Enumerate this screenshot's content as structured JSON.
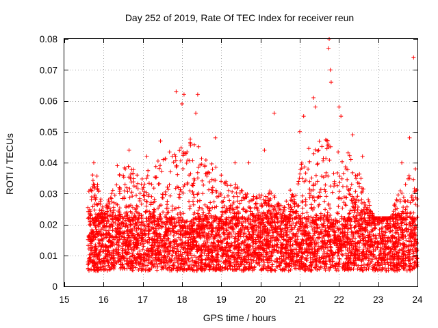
{
  "chart_data": {
    "type": "scatter",
    "title": "Day 252 of 2019, Rate Of TEC Index for receiver reun",
    "xlabel": "GPS time / hours",
    "ylabel": "ROTI / TECUs",
    "xlim": [
      15,
      24
    ],
    "ylim": [
      0,
      0.08
    ],
    "xticks": [
      15,
      16,
      17,
      18,
      19,
      20,
      21,
      22,
      23,
      24
    ],
    "yticks": [
      0,
      0.01,
      0.02,
      0.03,
      0.04,
      0.05,
      0.06,
      0.07,
      0.08
    ],
    "xtick_labels": [
      "15",
      "16",
      "17",
      "18",
      "19",
      "20",
      "21",
      "22",
      "23",
      "24"
    ],
    "ytick_labels": [
      "0",
      "0.01",
      "0.02",
      "0.03",
      "0.04",
      "0.05",
      "0.06",
      "0.07",
      "0.08"
    ],
    "grid": true,
    "marker": "+",
    "color": "#ff0000",
    "series": [
      {
        "name": "ROTI",
        "x_range": [
          15.6,
          24.0
        ],
        "baseline_min": 0.005,
        "baseline_max": 0.022,
        "notable_points": [
          [
            15.75,
            0.04
          ],
          [
            15.72,
            0.036
          ],
          [
            16.35,
            0.039
          ],
          [
            16.65,
            0.044
          ],
          [
            17.1,
            0.042
          ],
          [
            17.45,
            0.047
          ],
          [
            17.75,
            0.042
          ],
          [
            17.85,
            0.063
          ],
          [
            18.05,
            0.062
          ],
          [
            18.0,
            0.059
          ],
          [
            18.4,
            0.062
          ],
          [
            18.35,
            0.056
          ],
          [
            18.85,
            0.048
          ],
          [
            19.35,
            0.04
          ],
          [
            19.7,
            0.04
          ],
          [
            20.1,
            0.044
          ],
          [
            20.35,
            0.056
          ],
          [
            21.0,
            0.05
          ],
          [
            21.1,
            0.055
          ],
          [
            21.35,
            0.061
          ],
          [
            21.4,
            0.058
          ],
          [
            21.75,
            0.08
          ],
          [
            21.73,
            0.077
          ],
          [
            21.78,
            0.07
          ],
          [
            21.8,
            0.066
          ],
          [
            22.0,
            0.058
          ],
          [
            22.05,
            0.055
          ],
          [
            22.35,
            0.049
          ],
          [
            22.6,
            0.042
          ],
          [
            23.6,
            0.04
          ],
          [
            23.8,
            0.048
          ],
          [
            23.9,
            0.074
          ],
          [
            23.95,
            0.038
          ],
          [
            24.0,
            0.026
          ]
        ]
      }
    ]
  }
}
